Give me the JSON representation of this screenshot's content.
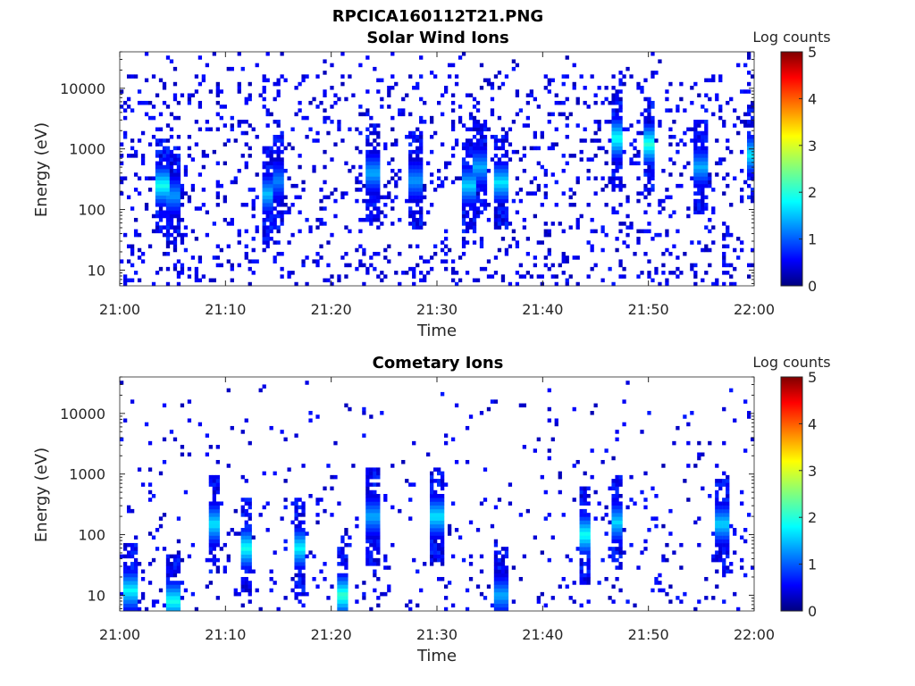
{
  "figure": {
    "title": "RPCICA160112T21.PNG"
  },
  "colors": {
    "colormap": [
      "#00007f",
      "#0000ff",
      "#007fff",
      "#00ffff",
      "#7fff7f",
      "#ffff00",
      "#ff7f00",
      "#ff0000",
      "#7f0000"
    ],
    "axis": "#262626"
  },
  "chart_data": [
    {
      "type": "heatmap",
      "title": "Solar Wind Ions",
      "xlabel": "Time",
      "ylabel": "Energy (eV)",
      "y_scale": "log",
      "xlim": [
        "21:00",
        "22:00"
      ],
      "ylim": [
        5.5,
        40000
      ],
      "xticks": [
        "21:00",
        "21:10",
        "21:20",
        "21:30",
        "21:40",
        "21:50",
        "22:00"
      ],
      "yticks": [
        "10",
        "100",
        "1000",
        "10000"
      ],
      "colorbar": {
        "label": "Log counts",
        "min": 0,
        "max": 5,
        "ticks": [
          "0",
          "1",
          "2",
          "3",
          "4",
          "5"
        ]
      },
      "seed": 12345,
      "background_density": 0.11,
      "high_energy_density": 0.13,
      "bursts": [
        {
          "time": "21:04",
          "energy": 250,
          "level": 2.0
        },
        {
          "time": "21:05",
          "energy": 170,
          "level": 1.4
        },
        {
          "time": "21:14",
          "energy": 180,
          "level": 1.6
        },
        {
          "time": "21:15",
          "energy": 300,
          "level": 1.3
        },
        {
          "time": "21:24",
          "energy": 400,
          "level": 1.5
        },
        {
          "time": "21:28",
          "energy": 300,
          "level": 1.4
        },
        {
          "time": "21:33",
          "energy": 250,
          "level": 1.7
        },
        {
          "time": "21:34",
          "energy": 500,
          "level": 1.5
        },
        {
          "time": "21:36",
          "energy": 280,
          "level": 1.8
        },
        {
          "time": "21:47",
          "energy": 1500,
          "level": 2.0
        },
        {
          "time": "21:50",
          "energy": 1200,
          "level": 2.1
        },
        {
          "time": "21:55",
          "energy": 500,
          "level": 1.5
        },
        {
          "time": "22:00",
          "energy": 800,
          "level": 1.8
        }
      ]
    },
    {
      "type": "heatmap",
      "title": "Cometary Ions",
      "xlabel": "Time",
      "ylabel": "Energy (eV)",
      "y_scale": "log",
      "xlim": [
        "21:00",
        "22:00"
      ],
      "ylim": [
        5.5,
        40000
      ],
      "xticks": [
        "21:00",
        "21:10",
        "21:20",
        "21:30",
        "21:40",
        "21:50",
        "22:00"
      ],
      "yticks": [
        "10",
        "100",
        "1000",
        "10000"
      ],
      "colorbar": {
        "label": "Log counts",
        "min": 0,
        "max": 5,
        "ticks": [
          "0",
          "1",
          "2",
          "3",
          "4",
          "5"
        ]
      },
      "seed": 67890,
      "background_density": 0.06,
      "high_energy_density": 0.035,
      "bursts": [
        {
          "time": "21:01",
          "energy": 12,
          "level": 1.9
        },
        {
          "time": "21:05",
          "energy": 8,
          "level": 2.0
        },
        {
          "time": "21:09",
          "energy": 150,
          "level": 1.8
        },
        {
          "time": "21:12",
          "energy": 60,
          "level": 2.0
        },
        {
          "time": "21:17",
          "energy": 60,
          "level": 1.9
        },
        {
          "time": "21:21",
          "energy": 10,
          "level": 2.2
        },
        {
          "time": "21:24",
          "energy": 200,
          "level": 1.5
        },
        {
          "time": "21:30",
          "energy": 200,
          "level": 1.8
        },
        {
          "time": "21:36",
          "energy": 10,
          "level": 1.5
        },
        {
          "time": "21:44",
          "energy": 100,
          "level": 2.0
        },
        {
          "time": "21:47",
          "energy": 160,
          "level": 1.7
        },
        {
          "time": "21:57",
          "energy": 150,
          "level": 1.7
        }
      ]
    }
  ]
}
